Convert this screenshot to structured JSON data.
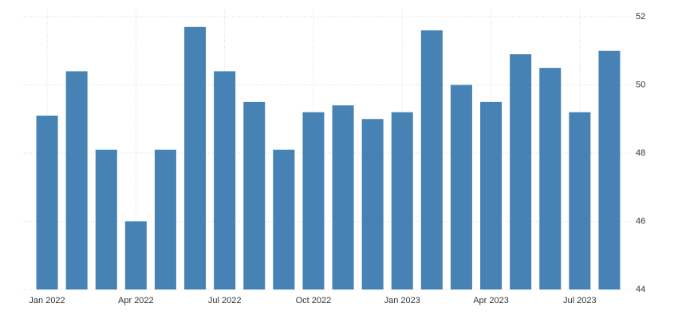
{
  "chart_data": {
    "type": "bar",
    "categories": [
      "Jan 2022",
      null,
      null,
      "Apr 2022",
      null,
      null,
      "Jul 2022",
      null,
      null,
      "Oct 2022",
      null,
      null,
      "Jan 2023",
      null,
      null,
      "Apr 2023",
      null,
      null,
      "Jul 2023",
      null
    ],
    "values": [
      49.1,
      50.4,
      48.1,
      46.0,
      48.1,
      51.7,
      50.4,
      49.5,
      48.1,
      49.2,
      49.4,
      49.0,
      49.2,
      51.6,
      50.0,
      49.5,
      50.9,
      50.5,
      49.2,
      51.0
    ],
    "color": "#4682b4",
    "ylim": [
      44,
      52
    ],
    "yticks": [
      44,
      46,
      48,
      50,
      52
    ],
    "grid": true
  }
}
